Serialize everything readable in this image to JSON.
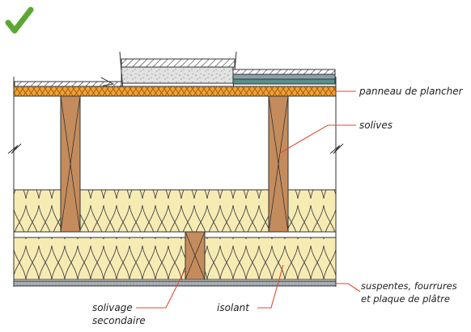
{
  "labels": {
    "floor_panel": "panneau de plancher",
    "joists": "solives",
    "hangers_line1": "suspentes, fourrures",
    "hangers_line2": "et plaque de plâtre",
    "insulation": "isolant",
    "secondary_line1": "solivage",
    "secondary_line2": "secondaire"
  },
  "icons": {
    "approval": "check-mark-icon"
  },
  "colors": {
    "check": "#5aa832",
    "osb": "#f0a035",
    "wood": "#c48c5c",
    "insulation": "#f7ebb4",
    "leader": "#e04a2a",
    "gypsum": "#9aa2a8",
    "screed": "#e0e0e0"
  }
}
